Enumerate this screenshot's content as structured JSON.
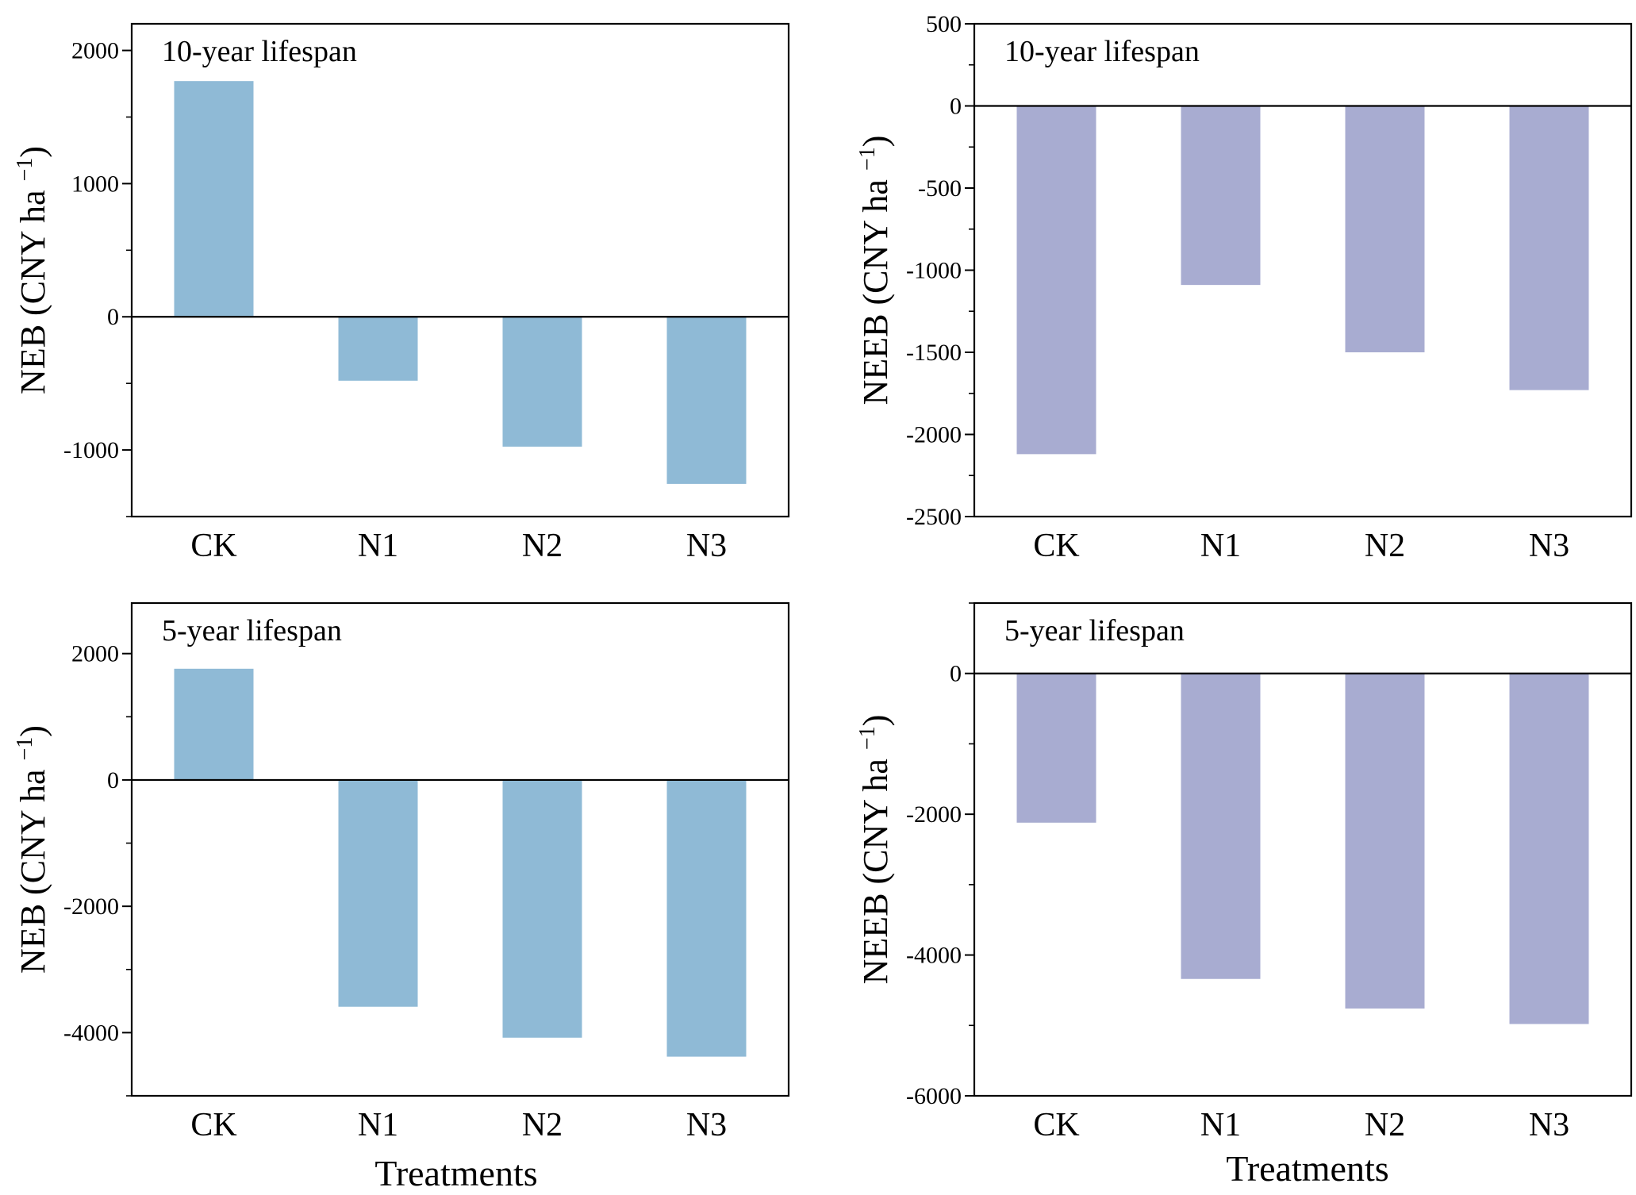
{
  "figure": {
    "x_axis_title": "Treatments"
  },
  "colors": {
    "neb_bar": "#8fbad6",
    "neeb_bar": "#a8acd1",
    "axis": "#000000"
  },
  "chart_data": [
    {
      "type": "bar",
      "title": "10-year lifespan",
      "ylabel": "NEB (CNY ha",
      "ylabel_sup": "−1",
      "ylabel_close": ")",
      "xlabel": "",
      "categories": [
        "CK",
        "N1",
        "N2",
        "N3"
      ],
      "values": [
        1770,
        -480,
        -975,
        -1255
      ],
      "ylim": [
        -1500,
        2200
      ],
      "yticks": [
        -1000,
        0,
        1000,
        2000
      ],
      "minor_step": 500,
      "bar_color": "#8fbad6"
    },
    {
      "type": "bar",
      "title": "10-year lifespan",
      "ylabel": "NEEB (CNY ha",
      "ylabel_sup": "−1",
      "ylabel_close": ")",
      "xlabel": "",
      "categories": [
        "CK",
        "N1",
        "N2",
        "N3"
      ],
      "values": [
        -2120,
        -1090,
        -1500,
        -1730
      ],
      "ylim": [
        -2500,
        500
      ],
      "yticks": [
        -2500,
        -2000,
        -1500,
        -1000,
        -500,
        0,
        500
      ],
      "minor_step": 250,
      "bar_color": "#a8acd1"
    },
    {
      "type": "bar",
      "title": "5-year lifespan",
      "ylabel": "NEB (CNY ha",
      "ylabel_sup": "−1",
      "ylabel_close": ")",
      "xlabel": "Treatments",
      "categories": [
        "CK",
        "N1",
        "N2",
        "N3"
      ],
      "values": [
        1760,
        -3590,
        -4080,
        -4380
      ],
      "ylim": [
        -5000,
        2800
      ],
      "yticks": [
        -4000,
        -2000,
        0,
        2000
      ],
      "minor_step": 1000,
      "bar_color": "#8fbad6"
    },
    {
      "type": "bar",
      "title": "5-year lifespan",
      "ylabel": "NEEB (CNY ha",
      "ylabel_sup": "−1",
      "ylabel_close": ")",
      "xlabel": "Treatments",
      "categories": [
        "CK",
        "N1",
        "N2",
        "N3"
      ],
      "values": [
        -2120,
        -4340,
        -4760,
        -4980
      ],
      "ylim": [
        -6000,
        1000
      ],
      "yticks": [
        -6000,
        -4000,
        -2000,
        0
      ],
      "minor_step": 1000,
      "bar_color": "#a8acd1"
    }
  ]
}
